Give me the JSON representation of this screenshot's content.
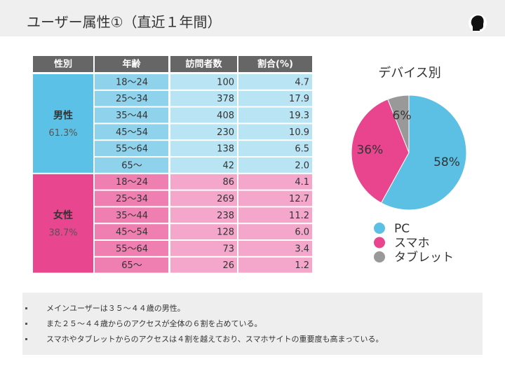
{
  "header": {
    "title": "ユーザー属性①（直近１年間）"
  },
  "table": {
    "headers": [
      "性別",
      "年齢",
      "訪問者数",
      "割合(%)"
    ],
    "groups": [
      {
        "label": "男性",
        "share": "61.3%",
        "rows": [
          [
            "18～24",
            "100",
            "4.7"
          ],
          [
            "25～34",
            "378",
            "17.9"
          ],
          [
            "35～44",
            "408",
            "19.3"
          ],
          [
            "45～54",
            "230",
            "10.9"
          ],
          [
            "55～64",
            "138",
            "6.5"
          ],
          [
            "65～",
            "42",
            "2.0"
          ]
        ]
      },
      {
        "label": "女性",
        "share": "38.7%",
        "rows": [
          [
            "18～24",
            "86",
            "4.1"
          ],
          [
            "25～34",
            "269",
            "12.7"
          ],
          [
            "35～44",
            "238",
            "11.2"
          ],
          [
            "45～54",
            "128",
            "6.0"
          ],
          [
            "55～64",
            "73",
            "3.4"
          ],
          [
            "65～",
            "26",
            "1.2"
          ]
        ]
      }
    ]
  },
  "chart_data": {
    "type": "pie",
    "title": "デバイス別",
    "categories": [
      "PC",
      "スマホ",
      "タブレット"
    ],
    "values": [
      58,
      36,
      6
    ],
    "value_labels": [
      "58%",
      "36%",
      "6%"
    ],
    "colors": [
      "#5bc0e4",
      "#e8458e",
      "#999999"
    ]
  },
  "notes": [
    "メインユーザーは３５～４４歳の男性。",
    "また２５～４４歳からのアクセスが全体の６割を占めている。",
    "スマホやタブレットからのアクセスは４割を越えており、スマホサイトの重要度も高まっている。"
  ]
}
